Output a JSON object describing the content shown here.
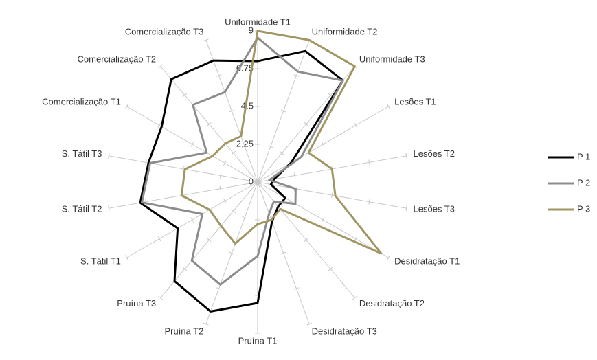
{
  "chart_data": {
    "type": "radar",
    "categories": [
      "Uniformidade T1",
      "Uniformidade T2",
      "Uniformidade T3",
      "Lesões T1",
      "Lesões T2",
      "Lesões T3",
      "Desidratação T1",
      "Desidratação T2",
      "Desidratação T3",
      "Pruína T1",
      "Pruína T2",
      "Pruína T3",
      "S. Tátil T1",
      "S. Tátil T2",
      "S. Tátil T3",
      "Comercialização T1",
      "Comercialização T2",
      "Comercialização T3"
    ],
    "series": [
      {
        "name": "P 1",
        "color": "#000000",
        "values": [
          7.2,
          8.3,
          7.9,
          2.3,
          1.0,
          0.8,
          1.9,
          1.9,
          2.5,
          7.2,
          8.2,
          7.7,
          5.5,
          7.1,
          6.6,
          6.6,
          8.0,
          7.7
        ]
      },
      {
        "name": "P 2",
        "color": "#8c8c8c",
        "values": [
          8.6,
          7.0,
          7.9,
          3.0,
          0.7,
          2.3,
          2.6,
          1.5,
          2.0,
          4.4,
          6.5,
          6.1,
          3.8,
          7.0,
          6.5,
          3.5,
          6.0,
          5.7
        ]
      },
      {
        "name": "P 3",
        "color": "#a09664",
        "values": [
          9,
          9,
          9,
          3.5,
          4.5,
          4.7,
          8.5,
          2.1,
          2.4,
          2.5,
          3.9,
          3.4,
          3.3,
          4.6,
          4.4,
          3.1,
          3.0,
          2.9
        ]
      }
    ],
    "ylim": [
      0,
      9
    ],
    "yticks": [
      0,
      2.25,
      4.5,
      6.75,
      9
    ],
    "legend": "right"
  }
}
